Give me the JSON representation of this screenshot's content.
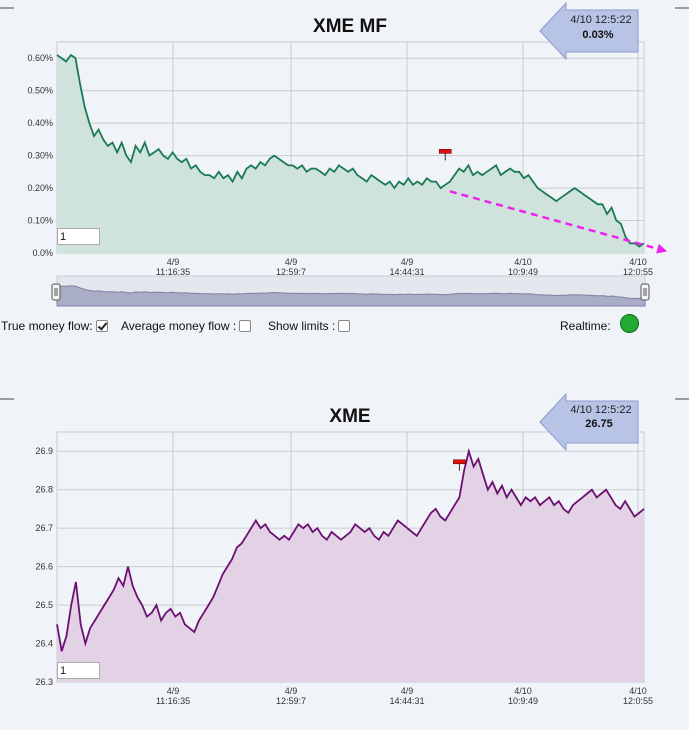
{
  "controls": {
    "true_money_flow_label": "True money flow:",
    "average_money_flow_label": "Average money flow :",
    "show_limits_label": "Show limits :",
    "realtime_label": "Realtime:",
    "true_money_flow_checked": true,
    "average_money_flow_checked": false,
    "show_limits_checked": false,
    "realtime_status_color": "#22aa33",
    "top_period_value": "1",
    "bottom_period_value": "1"
  },
  "chart_data": [
    {
      "type": "area",
      "title": "XME MF",
      "ylim": [
        0,
        0.0065
      ],
      "yticks": [
        "0.0%",
        "0.10%",
        "0.20%",
        "0.30%",
        "0.40%",
        "0.50%",
        "0.60%"
      ],
      "xticks": [
        {
          "date": "4/9",
          "time": "11:16:35"
        },
        {
          "date": "4/9",
          "time": "12:59:7"
        },
        {
          "date": "4/9",
          "time": "14:44:31"
        },
        {
          "date": "4/10",
          "time": "10:9:49"
        },
        {
          "date": "4/10",
          "time": "12:0:55"
        }
      ],
      "tooltip": {
        "time": "4/10 12:5:22",
        "value": "0.03%"
      },
      "line_color": "#1a7a55",
      "fill_color": "#cfe3dc",
      "y": [
        0.0061,
        0.006,
        0.0059,
        0.0061,
        0.006,
        0.0052,
        0.0045,
        0.004,
        0.0036,
        0.0038,
        0.0035,
        0.0033,
        0.0034,
        0.0031,
        0.0034,
        0.003,
        0.0028,
        0.0033,
        0.0031,
        0.0034,
        0.003,
        0.0031,
        0.0032,
        0.003,
        0.0029,
        0.0031,
        0.0029,
        0.0028,
        0.0029,
        0.0026,
        0.0027,
        0.0025,
        0.0024,
        0.0024,
        0.0023,
        0.0025,
        0.0023,
        0.0024,
        0.0022,
        0.0025,
        0.0023,
        0.0026,
        0.0027,
        0.0026,
        0.0028,
        0.0027,
        0.0029,
        0.003,
        0.0029,
        0.0028,
        0.0027,
        0.0027,
        0.0026,
        0.0027,
        0.0025,
        0.0026,
        0.0026,
        0.0025,
        0.0024,
        0.0026,
        0.0025,
        0.0027,
        0.0026,
        0.0025,
        0.0026,
        0.0024,
        0.0023,
        0.0022,
        0.0024,
        0.0023,
        0.0022,
        0.0021,
        0.0022,
        0.002,
        0.0022,
        0.0021,
        0.0023,
        0.0021,
        0.0022,
        0.0021,
        0.0023,
        0.0022,
        0.0022,
        0.002,
        0.0021,
        0.0022,
        0.0024,
        0.0026,
        0.0025,
        0.0027,
        0.0024,
        0.0025,
        0.0024,
        0.0025,
        0.0026,
        0.0027,
        0.0024,
        0.0025,
        0.0026,
        0.0025,
        0.0025,
        0.0023,
        0.0024,
        0.0022,
        0.002,
        0.0019,
        0.0018,
        0.0017,
        0.0016,
        0.0017,
        0.0018,
        0.0019,
        0.002,
        0.0019,
        0.0018,
        0.0017,
        0.0016,
        0.0015,
        0.0015,
        0.0012,
        0.0014,
        0.001,
        0.0009,
        0.0005,
        0.0003,
        0.0003,
        0.0002,
        0.0003
      ],
      "marker_y": 0.0031,
      "marker_index": 84,
      "trend_start": {
        "index": 85,
        "y": 0.0019
      },
      "trend_end": {
        "index": 132,
        "y": 5e-05
      },
      "trend_color": "#ee22ee"
    },
    {
      "type": "area",
      "title": "XME",
      "ylim": [
        26.3,
        26.95
      ],
      "yticks": [
        "26.3",
        "26.4",
        "26.5",
        "26.6",
        "26.7",
        "26.8",
        "26.9"
      ],
      "xticks": [
        {
          "date": "4/9",
          "time": "11:16:35"
        },
        {
          "date": "4/9",
          "time": "12:59:7"
        },
        {
          "date": "4/9",
          "time": "14:44:31"
        },
        {
          "date": "4/10",
          "time": "10:9:49"
        },
        {
          "date": "4/10",
          "time": "12:0:55"
        }
      ],
      "tooltip": {
        "time": "4/10 12:5:22",
        "value": "26.75"
      },
      "line_color": "#6b1070",
      "fill_color": "#e3d2e6",
      "y": [
        26.45,
        26.38,
        26.42,
        26.5,
        26.56,
        26.45,
        26.4,
        26.44,
        26.46,
        26.48,
        26.5,
        26.52,
        26.54,
        26.57,
        26.55,
        26.6,
        26.55,
        26.52,
        26.5,
        26.47,
        26.48,
        26.5,
        26.46,
        26.48,
        26.49,
        26.47,
        26.48,
        26.45,
        26.44,
        26.43,
        26.46,
        26.48,
        26.5,
        26.52,
        26.55,
        26.58,
        26.6,
        26.62,
        26.65,
        26.66,
        26.68,
        26.7,
        26.72,
        26.7,
        26.71,
        26.69,
        26.68,
        26.67,
        26.68,
        26.67,
        26.69,
        26.71,
        26.7,
        26.71,
        26.69,
        26.7,
        26.68,
        26.67,
        26.69,
        26.68,
        26.67,
        26.68,
        26.69,
        26.71,
        26.7,
        26.69,
        26.7,
        26.68,
        26.67,
        26.69,
        26.68,
        26.7,
        26.72,
        26.71,
        26.7,
        26.69,
        26.68,
        26.7,
        26.72,
        26.74,
        26.75,
        26.73,
        26.72,
        26.74,
        26.76,
        26.78,
        26.85,
        26.9,
        26.86,
        26.88,
        26.84,
        26.8,
        26.82,
        26.79,
        26.81,
        26.78,
        26.8,
        26.78,
        26.76,
        26.78,
        26.77,
        26.78,
        26.76,
        26.77,
        26.78,
        26.76,
        26.77,
        26.75,
        26.74,
        26.76,
        26.77,
        26.78,
        26.79,
        26.8,
        26.78,
        26.79,
        26.8,
        26.78,
        26.76,
        26.75,
        26.77,
        26.75,
        26.73,
        26.74,
        26.75
      ],
      "marker_y": 26.87,
      "marker_index": 85
    }
  ]
}
